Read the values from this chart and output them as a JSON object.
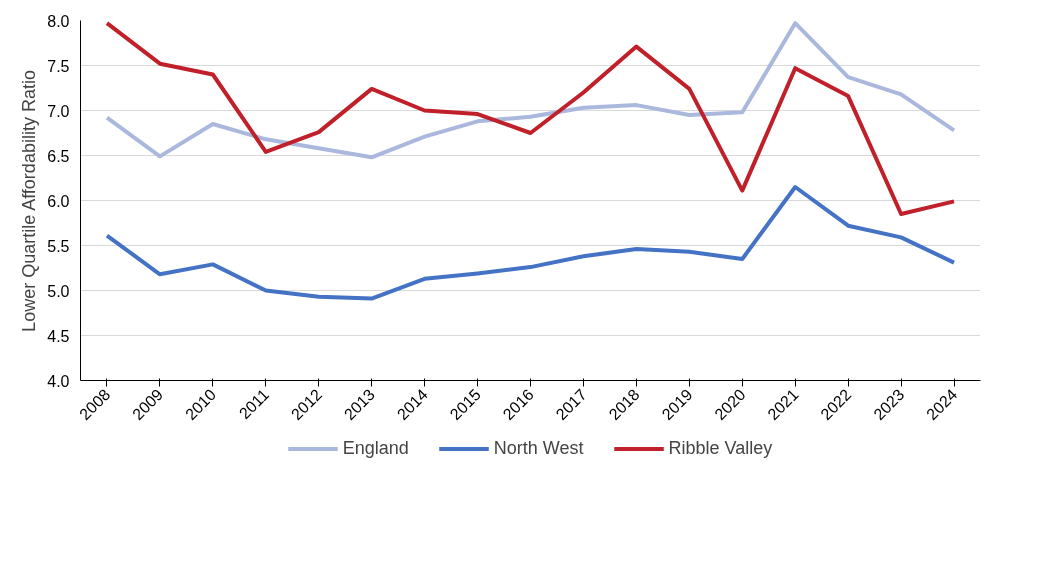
{
  "chart_data": {
    "type": "line",
    "ylabel": "Lower Quartile Affordability Ratio",
    "categories": [
      "2008",
      "2009",
      "2010",
      "2011",
      "2012",
      "2013",
      "2014",
      "2015",
      "2016",
      "2017",
      "2018",
      "2019",
      "2020",
      "2021",
      "2022",
      "2023",
      "2024"
    ],
    "series": [
      {
        "name": "England",
        "color": "#a9b8dc",
        "values": [
          6.92,
          6.49,
          6.85,
          6.68,
          6.58,
          6.48,
          6.71,
          6.88,
          6.93,
          7.03,
          7.06,
          6.95,
          6.98,
          7.97,
          7.37,
          7.18,
          6.78
        ]
      },
      {
        "name": "North West",
        "color": "#4472c4",
        "values": [
          5.61,
          5.18,
          5.29,
          5.0,
          4.93,
          4.91,
          5.13,
          5.19,
          5.26,
          5.38,
          5.46,
          5.43,
          5.35,
          6.15,
          5.72,
          5.59,
          5.31
        ]
      },
      {
        "name": "Ribble Valley",
        "color": "#c0202a",
        "values": [
          7.97,
          7.52,
          7.4,
          6.54,
          6.76,
          7.24,
          7.0,
          6.96,
          6.75,
          7.2,
          7.71,
          7.24,
          6.11,
          7.47,
          7.16,
          5.85,
          5.99
        ]
      }
    ],
    "ylim": [
      4.0,
      8.0
    ],
    "yticks": [
      {
        "value": 4,
        "label": "4.0"
      },
      {
        "value": 4.5,
        "label": "4.5"
      },
      {
        "value": 5,
        "label": "5.0"
      },
      {
        "value": 5.5,
        "label": "5.5"
      },
      {
        "value": 6,
        "label": "6.0"
      },
      {
        "value": 6.5,
        "label": "6.5"
      },
      {
        "value": 7,
        "label": "7.0"
      },
      {
        "value": 7.5,
        "label": "7.5"
      },
      {
        "value": 8,
        "label": "8.0"
      }
    ],
    "grid": "y",
    "legend": "bottom",
    "marker": "none",
    "line_style": "solid"
  }
}
